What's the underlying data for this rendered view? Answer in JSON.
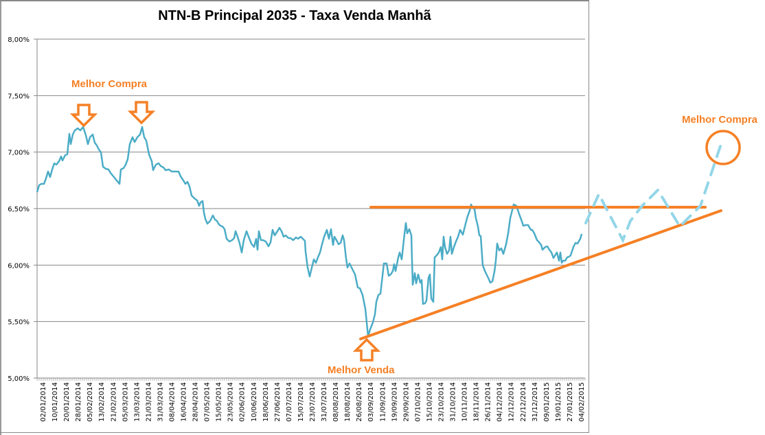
{
  "chart_data": {
    "type": "line",
    "title": "NTN-B Principal 2035 - Taxa Venda Manhã",
    "xlabel": "",
    "ylabel": "",
    "ylim": [
      0.05,
      0.08
    ],
    "y_ticks": [
      "5,00%",
      "5,50%",
      "6,00%",
      "6,50%",
      "7,00%",
      "7,50%",
      "8,00%"
    ],
    "x_tick_labels": [
      "02/01/2014",
      "10/01/2014",
      "20/01/2014",
      "28/01/2014",
      "05/02/2014",
      "13/02/2014",
      "21/02/2014",
      "05/03/2014",
      "13/03/2014",
      "21/03/2014",
      "31/03/2014",
      "08/04/2014",
      "16/04/2014",
      "28/04/2014",
      "07/05/2014",
      "15/05/2014",
      "23/05/2014",
      "02/06/2014",
      "10/06/2014",
      "18/06/2014",
      "27/06/2014",
      "07/07/2014",
      "15/07/2014",
      "23/07/2014",
      "31/07/2014",
      "08/08/2014",
      "18/08/2014",
      "26/08/2014",
      "03/09/2014",
      "11/09/2014",
      "19/09/2014",
      "29/09/2014",
      "07/10/2014",
      "15/10/2014",
      "23/10/2014",
      "31/10/2014",
      "10/11/2014",
      "18/11/2014",
      "26/11/2014",
      "04/12/2014",
      "12/12/2014",
      "22/12/2014",
      "31/12/2014",
      "09/01/2015",
      "19/01/2015",
      "27/01/2015",
      "04/02/2015"
    ],
    "grid": true,
    "legend": null,
    "series": [
      {
        "name": "Taxa Venda Manhã",
        "color": "#4bacc6",
        "x": [
          "02/01/2014",
          "10/01/2014",
          "20/01/2014",
          "28/01/2014",
          "05/02/2014",
          "13/02/2014",
          "21/02/2014",
          "05/03/2014",
          "13/03/2014",
          "21/03/2014",
          "31/03/2014",
          "08/04/2014",
          "16/04/2014",
          "28/04/2014",
          "07/05/2014",
          "15/05/2014",
          "23/05/2014",
          "02/06/2014",
          "10/06/2014",
          "18/06/2014",
          "27/06/2014",
          "07/07/2014",
          "15/07/2014",
          "23/07/2014",
          "31/07/2014",
          "08/08/2014",
          "18/08/2014",
          "26/08/2014",
          "03/09/2014",
          "11/09/2014",
          "19/09/2014",
          "29/09/2014",
          "07/10/2014",
          "15/10/2014",
          "23/10/2014",
          "31/10/2014",
          "10/11/2014",
          "18/11/2014",
          "26/11/2014",
          "04/12/2014",
          "12/12/2014",
          "22/12/2014",
          "31/12/2014",
          "09/01/2015",
          "19/01/2015",
          "27/01/2015",
          "04/02/2015"
        ],
        "values": [
          0.0665,
          0.0678,
          0.0688,
          0.0715,
          0.0719,
          0.0708,
          0.0685,
          0.068,
          0.0706,
          0.072,
          0.069,
          0.069,
          0.0683,
          0.0672,
          0.064,
          0.0638,
          0.0625,
          0.0622,
          0.0615,
          0.0625,
          0.0628,
          0.0625,
          0.0622,
          0.06,
          0.0625,
          0.06,
          0.0588,
          0.0558,
          0.0538,
          0.058,
          0.0595,
          0.063,
          0.058,
          0.0575,
          0.062,
          0.0625,
          0.065,
          0.0645,
          0.0585,
          0.061,
          0.065,
          0.0635,
          0.0625,
          0.0618,
          0.0605,
          0.0605,
          0.0628
        ]
      }
    ],
    "annotations": [
      {
        "text": "Melhor Compra",
        "type": "label",
        "position": "top-left peaks"
      },
      {
        "text": "Melhor Venda",
        "type": "label",
        "position": "bottom at 03/09/2014 low"
      },
      {
        "text": "Melhor Compra",
        "type": "label",
        "position": "right projection target"
      },
      {
        "type": "horizontal-resistance-line",
        "level": 0.0651,
        "color": "#f58025"
      },
      {
        "type": "ascending-support-line",
        "from": 0.0535,
        "to": 0.0647,
        "color": "#f58025"
      },
      {
        "type": "dashed-projection",
        "color": "#93d6e8"
      }
    ]
  },
  "annotations": {
    "best_buy_top": "Melhor Compra",
    "best_sell": "Melhor Venda",
    "best_buy_right": "Melhor Compra"
  },
  "colors": {
    "series": "#4bacc6",
    "annotation": "#f58025",
    "projection": "#93d6e8",
    "grid": "#868686"
  }
}
